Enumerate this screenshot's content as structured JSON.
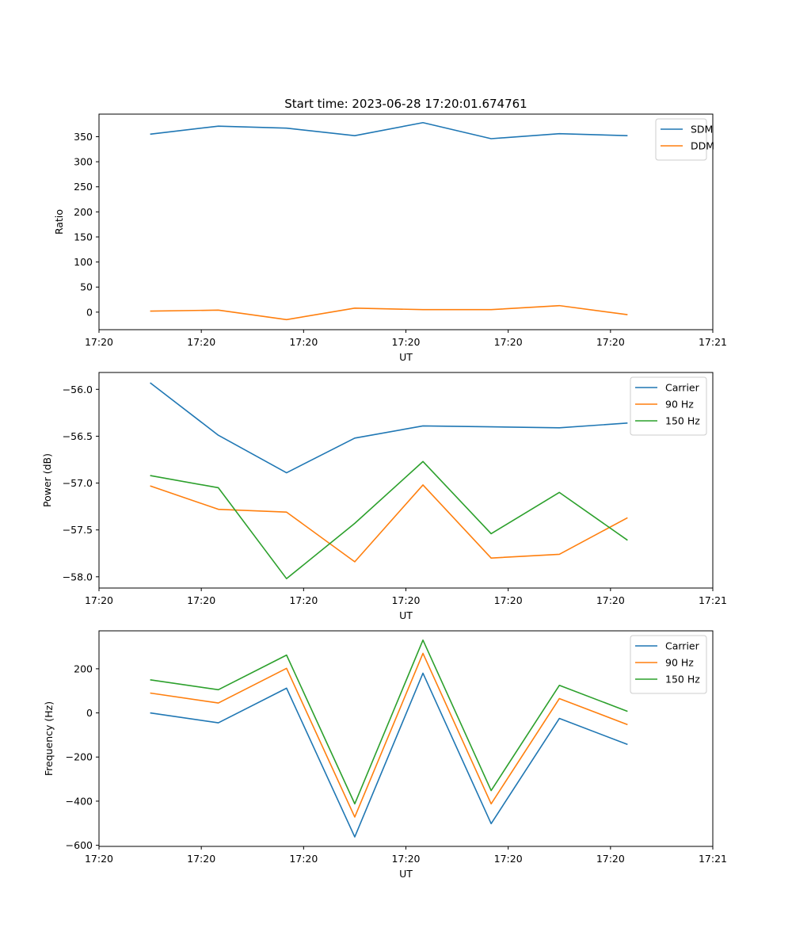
{
  "chart_data": [
    {
      "type": "line",
      "title": "Start time: 2023-06-28 17:20:01.674761",
      "xlabel": "UT",
      "ylabel": "Ratio",
      "xlim": [
        0,
        9
      ],
      "ylim": [
        -35,
        395
      ],
      "x": [
        0.75,
        1.75,
        2.75,
        3.75,
        4.75,
        5.75,
        6.75,
        7.75
      ],
      "x_ticks": [
        0,
        1.5,
        3,
        4.5,
        6,
        7.5,
        9
      ],
      "x_tick_labels": [
        "17:20",
        "17:20",
        "17:20",
        "17:20",
        "17:20",
        "17:20",
        "17:21"
      ],
      "y_ticks": [
        0,
        50,
        100,
        150,
        200,
        250,
        300,
        350
      ],
      "y_tick_labels": [
        "0",
        "50",
        "100",
        "150",
        "200",
        "250",
        "300",
        "350"
      ],
      "legend": "top-right",
      "grid": false,
      "series": [
        {
          "name": "SDM",
          "color": "#1f77b4",
          "values": [
            355,
            371,
            367,
            352,
            378,
            346,
            356,
            352
          ]
        },
        {
          "name": "DDM",
          "color": "#ff7f0e",
          "values": [
            2,
            4,
            -15,
            8,
            5,
            5,
            13,
            -5
          ]
        }
      ]
    },
    {
      "type": "line",
      "title": "",
      "xlabel": "UT",
      "ylabel": "Power (dB)",
      "xlim": [
        0,
        9
      ],
      "ylim": [
        -58.12,
        -55.82
      ],
      "x": [
        0.75,
        1.75,
        2.75,
        3.75,
        4.75,
        5.75,
        6.75,
        7.75
      ],
      "x_ticks": [
        0,
        1.5,
        3,
        4.5,
        6,
        7.5,
        9
      ],
      "x_tick_labels": [
        "17:20",
        "17:20",
        "17:20",
        "17:20",
        "17:20",
        "17:20",
        "17:21"
      ],
      "y_ticks": [
        -58.0,
        -57.5,
        -57.0,
        -56.5,
        -56.0
      ],
      "y_tick_labels": [
        "−58.0",
        "−57.5",
        "−57.0",
        "−56.5",
        "−56.0"
      ],
      "legend": "top-right",
      "grid": false,
      "series": [
        {
          "name": "Carrier",
          "color": "#1f77b4",
          "values": [
            -55.93,
            -56.49,
            -56.89,
            -56.52,
            -56.39,
            -56.4,
            -56.41,
            -56.36
          ]
        },
        {
          "name": "90 Hz",
          "color": "#ff7f0e",
          "values": [
            -57.03,
            -57.28,
            -57.31,
            -57.84,
            -57.02,
            -57.8,
            -57.76,
            -57.37
          ]
        },
        {
          "name": "150 Hz",
          "color": "#2ca02c",
          "values": [
            -56.92,
            -57.05,
            -58.02,
            -57.43,
            -56.77,
            -57.54,
            -57.1,
            -57.61
          ]
        }
      ]
    },
    {
      "type": "line",
      "title": "",
      "xlabel": "UT",
      "ylabel": "Frequency (Hz)",
      "xlim": [
        0,
        9
      ],
      "ylim": [
        -605,
        372
      ],
      "x": [
        0.75,
        1.75,
        2.75,
        3.75,
        4.75,
        5.75,
        6.75,
        7.75
      ],
      "x_ticks": [
        0,
        1.5,
        3,
        4.5,
        6,
        7.5,
        9
      ],
      "x_tick_labels": [
        "17:20",
        "17:20",
        "17:20",
        "17:20",
        "17:20",
        "17:20",
        "17:21"
      ],
      "y_ticks": [
        -600,
        -400,
        -200,
        0,
        200
      ],
      "y_tick_labels": [
        "−600",
        "−400",
        "−200",
        "0",
        "200"
      ],
      "legend": "top-right",
      "grid": false,
      "series": [
        {
          "name": "Carrier",
          "color": "#1f77b4",
          "values": [
            0,
            -45,
            112,
            -562,
            180,
            -502,
            -25,
            -143
          ]
        },
        {
          "name": "90 Hz",
          "color": "#ff7f0e",
          "values": [
            90,
            45,
            202,
            -472,
            270,
            -412,
            65,
            -53
          ]
        },
        {
          "name": "150 Hz",
          "color": "#2ca02c",
          "values": [
            150,
            105,
            262,
            -412,
            330,
            -352,
            125,
            7
          ]
        }
      ]
    }
  ]
}
